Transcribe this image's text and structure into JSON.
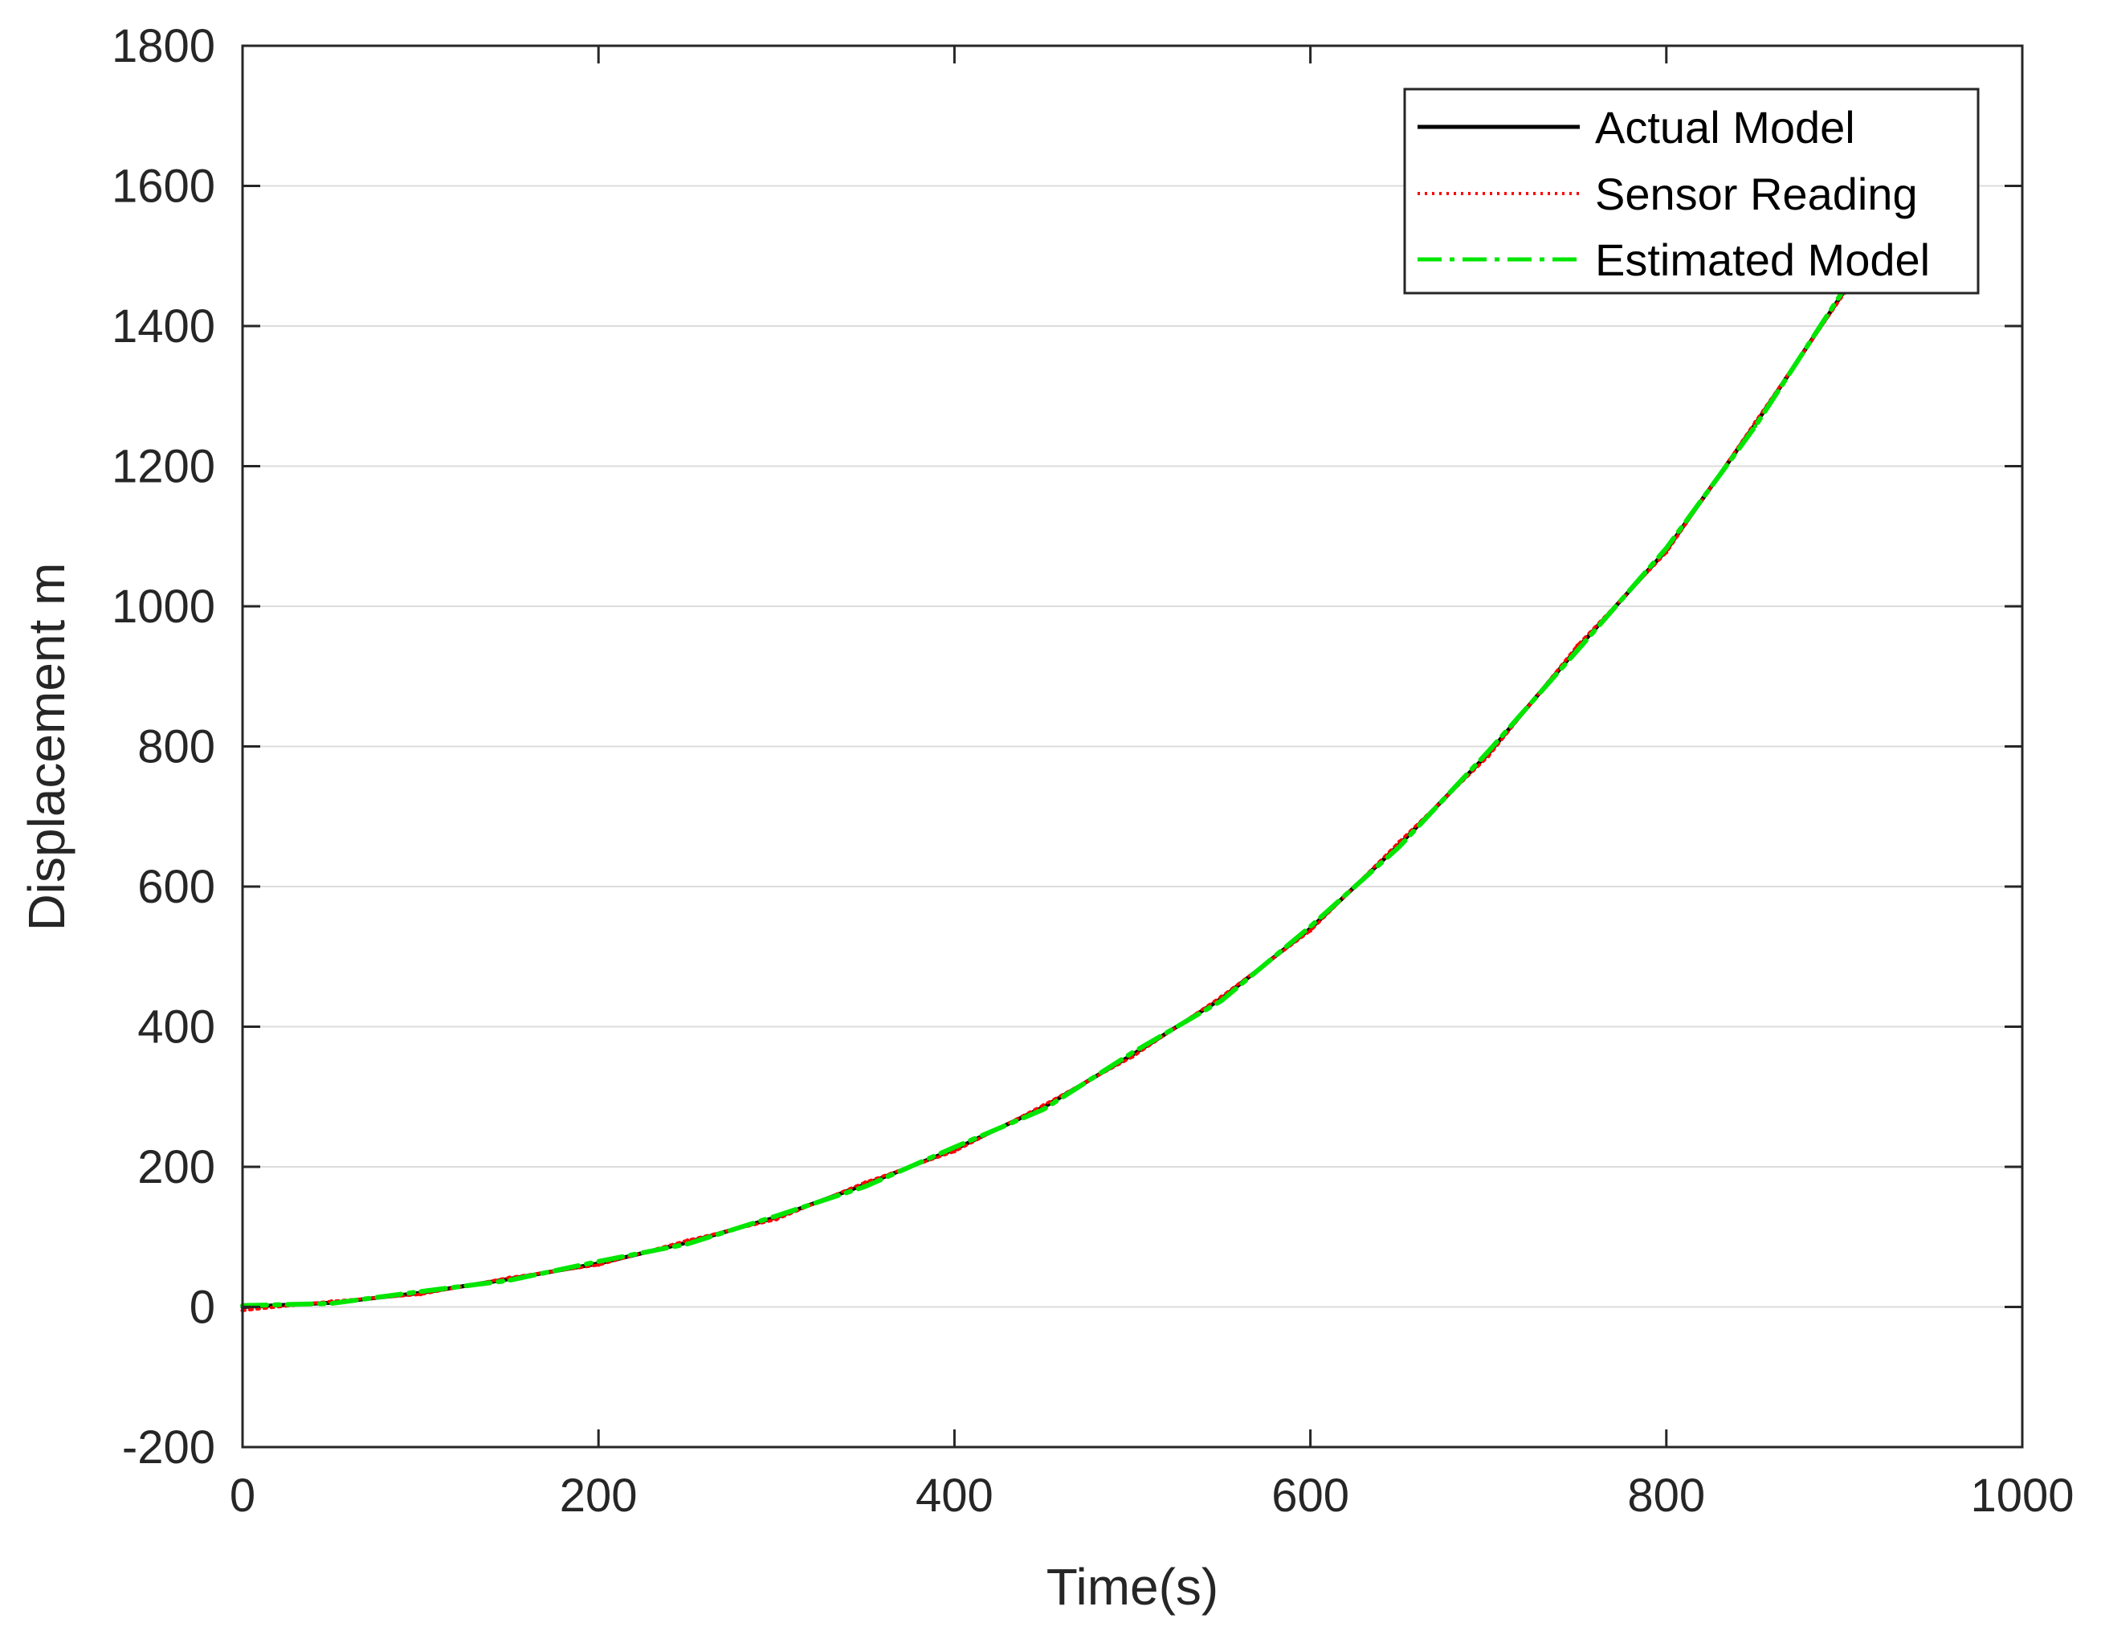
{
  "chart_data": {
    "type": "line",
    "title": "",
    "xlabel": "Time(s)",
    "ylabel": "Displacement m",
    "xlim": [
      0,
      1000
    ],
    "ylim": [
      -200,
      1800
    ],
    "xticks": [
      0,
      200,
      400,
      600,
      800,
      1000
    ],
    "yticks": [
      -200,
      0,
      200,
      400,
      600,
      800,
      1000,
      1200,
      1400,
      1600,
      1800
    ],
    "grid": "horizontal",
    "legend_position": "top-right",
    "series": [
      {
        "name": "Actual Model",
        "style": "solid",
        "color": "#000000",
        "x": [
          0,
          50,
          100,
          150,
          200,
          250,
          300,
          350,
          400,
          450,
          500,
          550,
          600,
          650,
          700,
          750,
          800,
          850,
          900
        ],
        "y": [
          0,
          6,
          20,
          40,
          62,
          92,
          128,
          175,
          225,
          285,
          360,
          440,
          540,
          660,
          790,
          940,
          1080,
          1260,
          1450
        ]
      },
      {
        "name": "Sensor Reading",
        "style": "dotted",
        "color": "#ff0000",
        "x": [
          0,
          50,
          100,
          150,
          200,
          250,
          300,
          350,
          400,
          450,
          500,
          550,
          600,
          650,
          700,
          750,
          800,
          850,
          900
        ],
        "y": [
          -5,
          8,
          18,
          42,
          60,
          95,
          125,
          178,
          222,
          288,
          357,
          443,
          537,
          664,
          786,
          944,
          1077,
          1263,
          1447
        ]
      },
      {
        "name": "Estimated Model",
        "style": "dash-dot",
        "color": "#00e600",
        "x": [
          0,
          50,
          100,
          150,
          200,
          250,
          300,
          350,
          400,
          450,
          500,
          550,
          600,
          650,
          700,
          750,
          800,
          850,
          900
        ],
        "y": [
          2,
          5,
          22,
          38,
          65,
          90,
          130,
          172,
          228,
          282,
          363,
          437,
          543,
          657,
          793,
          937,
          1083,
          1257,
          1453
        ]
      }
    ]
  }
}
